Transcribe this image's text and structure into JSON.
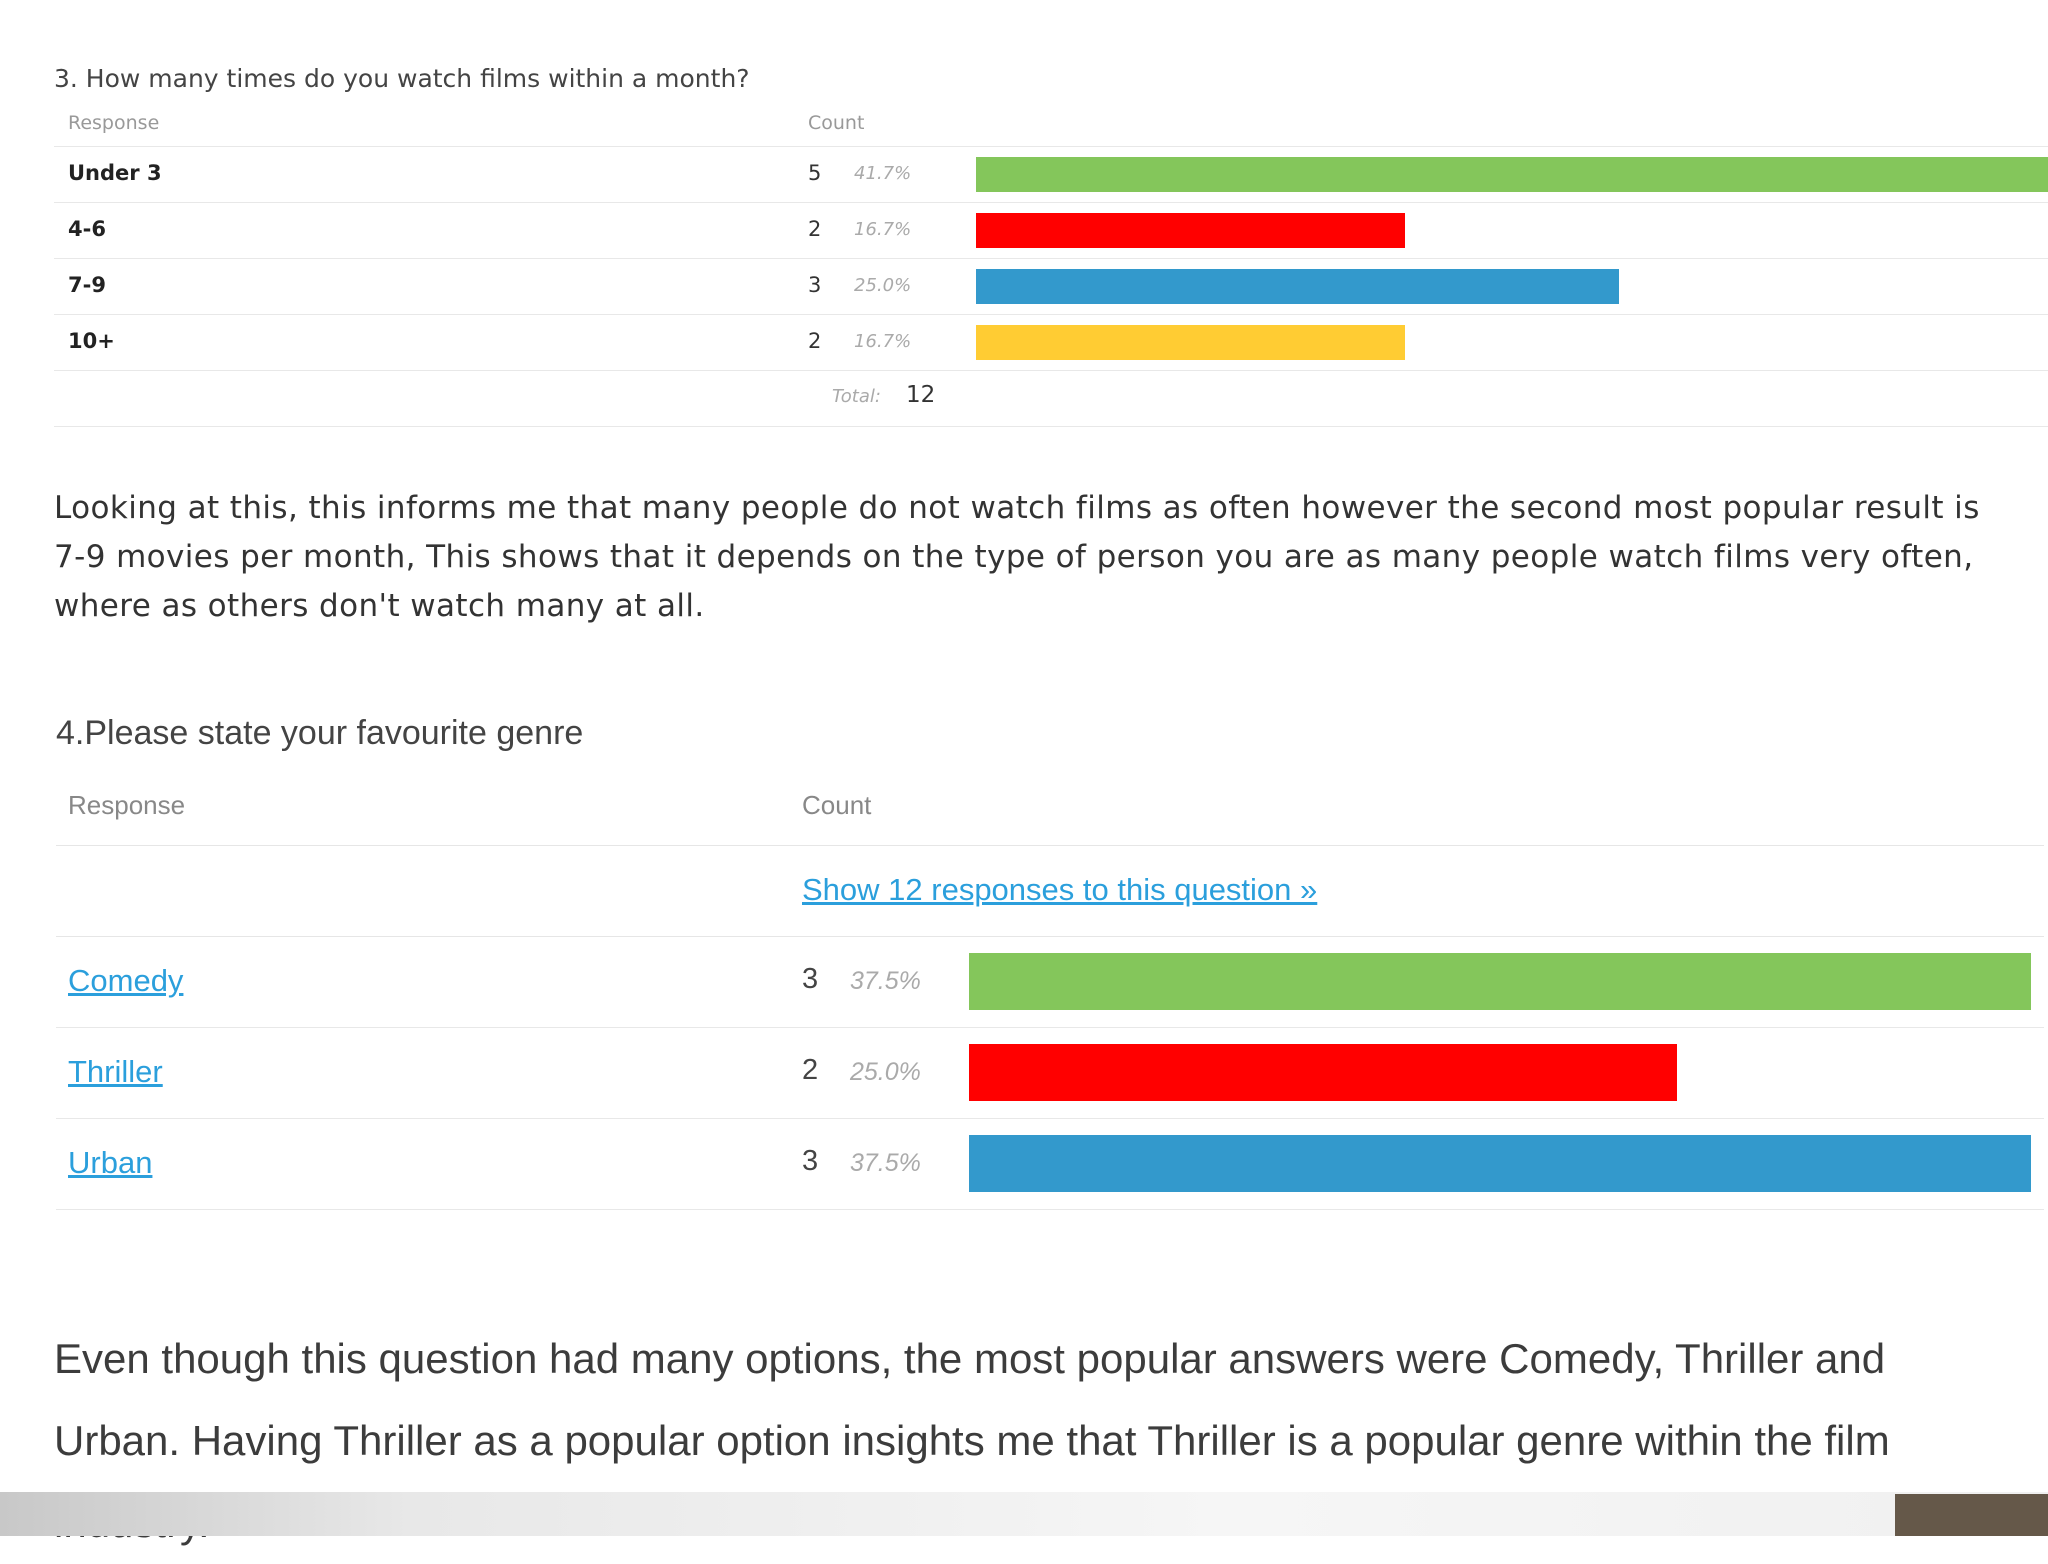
{
  "survey1": {
    "question": "3. How many times do you watch films within a month?",
    "header_response": "Response",
    "header_count": "Count",
    "rows": [
      {
        "label": "Under 3",
        "count": "5",
        "pct": "41.7%",
        "fraction": 0.417,
        "color": "#84c65b"
      },
      {
        "label": "4-6",
        "count": "2",
        "pct": "16.7%",
        "fraction": 0.167,
        "color": "#ff0000"
      },
      {
        "label": "7-9",
        "count": "3",
        "pct": "25.0%",
        "fraction": 0.25,
        "color": "#3399cc"
      },
      {
        "label": "10+",
        "count": "2",
        "pct": "16.7%",
        "fraction": 0.167,
        "color": "#ffcc33"
      }
    ],
    "total_label": "Total:",
    "total_value": "12"
  },
  "paragraph1": "Looking at this, this informs me that many people do not watch films as often however the second most popular result is 7-9 movies per month, This shows that it depends on the type of person you are as many people watch films very often, where as others don't watch many at all.",
  "survey2": {
    "question": "4.Please state your favourite genre",
    "header_response": "Response",
    "header_count": "Count",
    "show_link": "Show 12 responses to this question »",
    "rows": [
      {
        "label": "Comedy",
        "count": "3",
        "pct": "37.5%",
        "fraction": 0.375,
        "color": "#84c65b"
      },
      {
        "label": "Thriller",
        "count": "2",
        "pct": "25.0%",
        "fraction": 0.25,
        "color": "#ff0000"
      },
      {
        "label": "Urban",
        "count": "3",
        "pct": "37.5%",
        "fraction": 0.375,
        "color": "#3399cc"
      }
    ]
  },
  "paragraph2": "Even though this question had many options, the most popular answers were Comedy, Thriller and Urban. Having Thriller as a popular option insights me that Thriller is a popular genre within the film industry.",
  "colors": {
    "link": "#2b9fdc",
    "green": "#84c65b",
    "red": "#ff0000",
    "blue": "#3399cc",
    "yellow": "#ffcc33",
    "corner": "#655849"
  }
}
